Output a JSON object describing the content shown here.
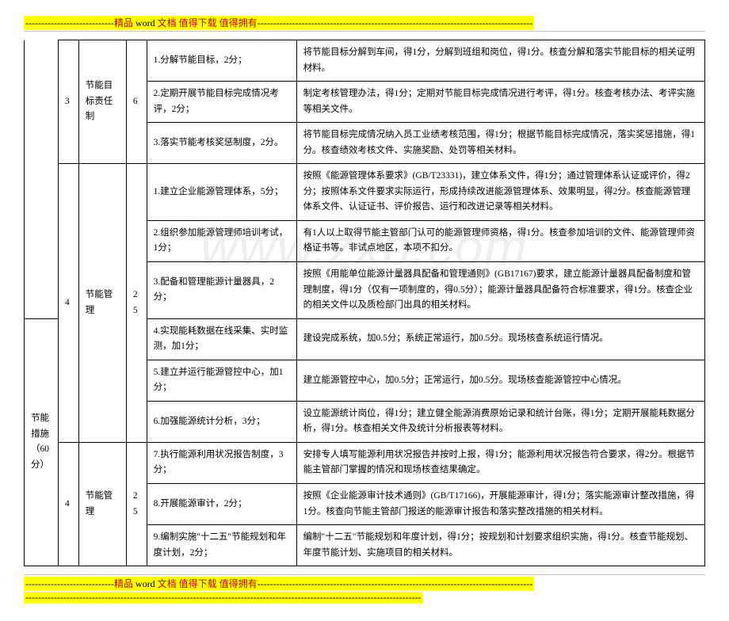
{
  "header": {
    "dashes_prefix": "----------------------------",
    "text_part1": "精品 ",
    "text_word": "word ",
    "text_part2": "文档  值得下载  值得拥有",
    "dashes_suffix": "---------------------------------------------------------------------------------------"
  },
  "footer": {
    "dashes_prefix": "----------------------------",
    "text_part1": "精品 ",
    "text_word": "word ",
    "text_part2": "文档  值得下载  值得拥有",
    "dashes_suffix": "---------------------------------------------------------------------------------------",
    "long_dashes": "-----------------------------------------------------------------------------------------------------------------------------"
  },
  "watermark": "www.zxb.com",
  "table": {
    "category": {
      "label": "节能措施（60分）",
      "score_col": "4"
    },
    "group1": {
      "idx": "3",
      "item": "节能目标责任制",
      "score": "6",
      "rows": [
        {
          "criteria": "1.分解节能目标，2分；",
          "desc": "将节能目标分解到车间，得1分，分解到班组和岗位，得1分。核查分解和落实节能目标的相关证明材料。"
        },
        {
          "criteria": "2.定期开展节能目标完成情况考评，2分；",
          "desc": "制定考核管理办法，得1分；定期对节能目标完成情况进行考评，得1分。核查考核办法、考评实施等相关文件。"
        },
        {
          "criteria": "3.落实节能考核奖惩制度，2分。",
          "desc": "将节能目标完成情况纳入员工业绩考核范围，得1分；根据节能目标完成情况，落实奖惩措施，得1分。核查绩效考核文件、实施奖励、处罚等相关材料。"
        }
      ]
    },
    "group2": {
      "idx": "4",
      "item": "节能管理",
      "score": "25",
      "rows": [
        {
          "criteria": "1.建立企业能源管理体系，5分；",
          "desc": "按照《能源管理体系要求》(GB/T23331)，建立体系文件，得1分；通过管理体系认证或评价，得2分；按照体系文件要求实际运行，形成持续改进能源管理体系、效果明显，得2分。核查能源管理体系文件、认证证书、评价报告、运行和改进记录等相关材料。"
        },
        {
          "criteria": "2.组织参加能源管理师培训考试，1分；",
          "desc": "有1人以上取得节能主管部门认可的能源管理师资格，得1分。核查参加培训的文件、能源管理师资格证书等。非试点地区，本项不扣分。"
        },
        {
          "criteria": "3.配备和管理能源计量器具，2分；",
          "desc": "按照《用能单位能源计量器具配备和管理通则》(GB17167)要求，建立能源计量器具配备制度和管理制度，得1分（仅有一项制度的，得0.5分）；能源计量器具配备符合标准要求，得1分。核查企业的相关文件以及质检部门出具的相关材料。"
        },
        {
          "criteria": "4.实现能耗数据在线采集、实时监测，加1分；",
          "desc": "建设完成系统，加0.5分；系统正常运行，加0.5分。现场核查系统运行情况。"
        },
        {
          "criteria": "5.建立并运行能源管控中心，加1分；",
          "desc": "建立能源管控中心，加0.5分；正常运行，加0.5分。现场核查能源管控中心情况。"
        },
        {
          "criteria": "6.加强能源统计分析，3分；",
          "desc": "设立能源统计岗位，得1分；建立健全能源消费原始记录和统计台账，得1分；定期开展能耗数据分析，得1分。核查相关文件及统计分析报表等材料。"
        }
      ]
    },
    "group3": {
      "idx": "4",
      "item": "节能管理",
      "score": "25",
      "rows": [
        {
          "criteria": "7.执行能源利用状况报告制度，3分；",
          "desc": "安排专人填写能源利用状况报告并按时上报，得1分；能源利用状况报告符合要求，得2分。根据节能主管部门掌握的情况和现场核查结果确定。"
        },
        {
          "criteria": "8.开展能源审计，2分；",
          "desc": "按照《企业能源审计技术通则》(GB/T17166)，开展能源审计，得1分；落实能源审计整改措施，得1分。核查向节能主管部门报送的能源审计报告和落实整改措施的相关材料。"
        },
        {
          "criteria": "9.编制实施\"十二五\"节能规划和年度计划，2分；",
          "desc": "编制\"十二五\"节能规划和年度计划，得1分；按规划和计划要求组织实施，得1分。核查节能规划、年度节能计划、实施项目的相关材料。"
        }
      ]
    }
  }
}
